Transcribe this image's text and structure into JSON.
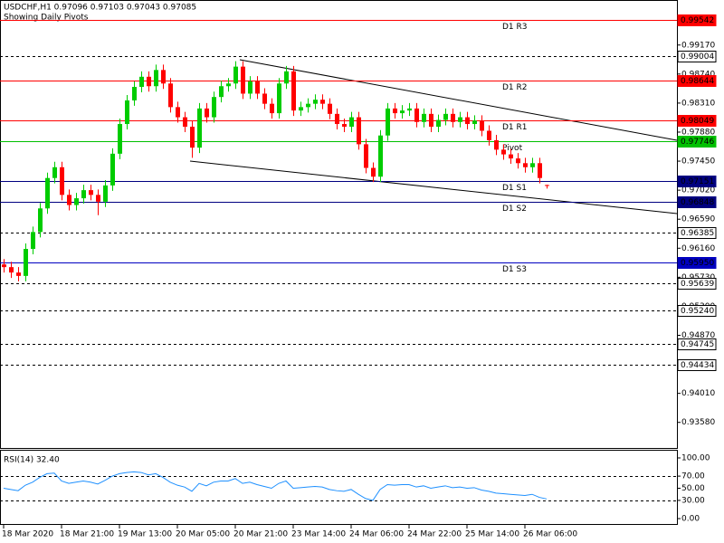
{
  "chart_data": {
    "type": "candlestick",
    "title": "USDCHF,H1  0.97096 0.97103 0.97043 0.97085",
    "subtitle": "Showing Daily Pivots",
    "up_color": "#00cc00",
    "down_color": "#ff0000",
    "categories": [
      "18 Mar 2020",
      null,
      null,
      null,
      null,
      null,
      null,
      null,
      "18 Mar 21:00",
      null,
      null,
      null,
      null,
      null,
      null,
      null,
      "19 Mar 13:00",
      null,
      null,
      null,
      null,
      null,
      null,
      null,
      "20 Mar 05:00",
      null,
      null,
      null,
      null,
      null,
      null,
      null,
      "20 Mar 21:00",
      null,
      null,
      null,
      null,
      null,
      null,
      null,
      "23 Mar 14:00",
      null,
      null,
      null,
      null,
      null,
      null,
      null,
      "24 Mar 06:00",
      null,
      null,
      null,
      null,
      null,
      null,
      null,
      "24 Mar 22:00",
      null,
      null,
      null,
      null,
      null,
      null,
      null,
      "25 Mar 14:00",
      null,
      null,
      null,
      null,
      null,
      null,
      null,
      "26 Mar 06:00",
      null,
      null,
      null
    ],
    "open": [
      0.9592,
      0.9588,
      0.958,
      0.9575,
      0.9615,
      0.964,
      0.9675,
      0.972,
      0.9736,
      0.9695,
      0.968,
      0.969,
      0.9702,
      0.9695,
      0.9685,
      0.9709,
      0.9756,
      0.98,
      0.9835,
      0.9855,
      0.987,
      0.9856,
      0.988,
      0.986,
      0.9825,
      0.981,
      0.9796,
      0.9765,
      0.9823,
      0.981,
      0.984,
      0.9856,
      0.986,
      0.9885,
      0.9845,
      0.9863,
      0.9845,
      0.983,
      0.9816,
      0.986,
      0.9878,
      0.982,
      0.9825,
      0.983,
      0.9836,
      0.983,
      0.9815,
      0.98,
      0.9796,
      0.981,
      0.977,
      0.9735,
      0.9722,
      0.9783,
      0.9823,
      0.9816,
      0.982,
      0.9823,
      0.9803,
      0.9815,
      0.9796,
      0.9806,
      0.9815,
      0.9803,
      0.981,
      0.98,
      0.9805,
      0.979,
      0.9776,
      0.9762,
      0.9755,
      0.9749,
      0.9742,
      0.9736,
      0.9742,
      0.97096
    ],
    "high": [
      0.96,
      0.9596,
      0.9588,
      0.9623,
      0.9648,
      0.9683,
      0.9728,
      0.9744,
      0.9744,
      0.9703,
      0.9698,
      0.971,
      0.971,
      0.9703,
      0.9717,
      0.9764,
      0.9808,
      0.9843,
      0.9863,
      0.9878,
      0.9878,
      0.9888,
      0.9888,
      0.9868,
      0.9833,
      0.9818,
      0.9804,
      0.9831,
      0.9831,
      0.9848,
      0.9864,
      0.9868,
      0.9893,
      0.9893,
      0.9871,
      0.9871,
      0.9853,
      0.9838,
      0.9868,
      0.9886,
      0.9886,
      0.9833,
      0.9838,
      0.9844,
      0.9844,
      0.9838,
      0.9823,
      0.9808,
      0.9818,
      0.9818,
      0.9778,
      0.9743,
      0.9791,
      0.9831,
      0.9831,
      0.9828,
      0.9831,
      0.9831,
      0.9823,
      0.9823,
      0.9814,
      0.9823,
      0.9823,
      0.9818,
      0.9818,
      0.9813,
      0.9813,
      0.9798,
      0.9784,
      0.977,
      0.9763,
      0.9757,
      0.975,
      0.975,
      0.975,
      0.97103
    ],
    "low": [
      0.958,
      0.9572,
      0.9567,
      0.9567,
      0.9607,
      0.9632,
      0.9667,
      0.9712,
      0.9687,
      0.9672,
      0.9672,
      0.9682,
      0.9687,
      0.9665,
      0.9677,
      0.9701,
      0.9748,
      0.9792,
      0.9827,
      0.9847,
      0.9848,
      0.9848,
      0.9852,
      0.9817,
      0.9802,
      0.9788,
      0.975,
      0.9757,
      0.9802,
      0.9802,
      0.9832,
      0.9848,
      0.9852,
      0.9837,
      0.9837,
      0.9837,
      0.9822,
      0.9808,
      0.9808,
      0.9852,
      0.9812,
      0.9812,
      0.9817,
      0.9822,
      0.9822,
      0.9807,
      0.9792,
      0.9788,
      0.9788,
      0.9762,
      0.9727,
      0.9714,
      0.9714,
      0.9775,
      0.9808,
      0.9808,
      0.9812,
      0.9795,
      0.9795,
      0.9788,
      0.9788,
      0.9798,
      0.9795,
      0.9795,
      0.9792,
      0.9792,
      0.9782,
      0.9768,
      0.9754,
      0.9747,
      0.9741,
      0.9734,
      0.9728,
      0.9728,
      0.9712,
      0.97043
    ],
    "close": [
      0.9588,
      0.958,
      0.9575,
      0.9615,
      0.964,
      0.9675,
      0.972,
      0.9736,
      0.9695,
      0.968,
      0.969,
      0.9702,
      0.9695,
      0.9685,
      0.9709,
      0.9756,
      0.98,
      0.9835,
      0.9855,
      0.987,
      0.9856,
      0.988,
      0.986,
      0.9825,
      0.981,
      0.9796,
      0.9765,
      0.9823,
      0.981,
      0.984,
      0.9856,
      0.986,
      0.9885,
      0.9845,
      0.9863,
      0.9845,
      0.983,
      0.9816,
      0.986,
      0.9878,
      0.982,
      0.9825,
      0.983,
      0.9836,
      0.983,
      0.9815,
      0.98,
      0.9796,
      0.981,
      0.977,
      0.9735,
      0.9722,
      0.9783,
      0.9823,
      0.9816,
      0.982,
      0.9823,
      0.9803,
      0.9815,
      0.9796,
      0.9806,
      0.9815,
      0.9803,
      0.981,
      0.98,
      0.9805,
      0.979,
      0.9776,
      0.9762,
      0.9755,
      0.9749,
      0.9742,
      0.9736,
      0.9742,
      0.972,
      0.97085
    ],
    "ylim": [
      0.93201,
      0.99837
    ],
    "yticks": [
      {
        "value": 0.9917,
        "label": "0.99170"
      },
      {
        "value": 0.9874,
        "label": "0.98740"
      },
      {
        "value": 0.9831,
        "label": "0.98310"
      },
      {
        "value": 0.9788,
        "label": "0.97880"
      },
      {
        "value": 0.9745,
        "label": "0.97450"
      },
      {
        "value": 0.9702,
        "label": "0.97020"
      },
      {
        "value": 0.9659,
        "label": "0.96590"
      },
      {
        "value": 0.9616,
        "label": "0.96160"
      },
      {
        "value": 0.9573,
        "label": "0.95730"
      },
      {
        "value": 0.953,
        "label": "0.95300"
      },
      {
        "value": 0.9487,
        "label": "0.94870"
      },
      {
        "value": 0.9401,
        "label": "0.94010"
      },
      {
        "value": 0.9358,
        "label": "0.93580"
      }
    ],
    "levels": [
      {
        "value": 0.99542,
        "label": "0.99542",
        "name": "D1 R3",
        "color": "#ff0000",
        "style": "solid"
      },
      {
        "value": 0.99004,
        "label": "0.99004",
        "color": "#000000",
        "style": "dashed"
      },
      {
        "value": 0.98644,
        "label": "0.98644",
        "name": "D1 R2",
        "color": "#ff0000",
        "style": "solid"
      },
      {
        "value": 0.98049,
        "label": "0.98049",
        "name": "D1 R1",
        "color": "#ff0000",
        "style": "solid"
      },
      {
        "value": 0.97746,
        "label": "0.97746",
        "name": "Pivot",
        "color": "#00c000",
        "style": "solid"
      },
      {
        "value": 0.97151,
        "label": "0.97151",
        "name": "D1 S1",
        "color": "#000080",
        "style": "solid"
      },
      {
        "value": 0.96848,
        "label": "0.96848",
        "name": "D1 S2",
        "color": "#000080",
        "style": "solid"
      },
      {
        "value": 0.96385,
        "label": "0.96385",
        "color": "#000000",
        "style": "dashed"
      },
      {
        "value": 0.9595,
        "label": "0.95950",
        "name": "D1 S3",
        "color": "#0000c0",
        "style": "solid"
      },
      {
        "value": 0.95639,
        "label": "0.95639",
        "color": "#000000",
        "style": "dashed"
      },
      {
        "value": 0.9524,
        "label": "0.95240",
        "color": "#000000",
        "style": "dashed"
      },
      {
        "value": 0.94745,
        "label": "0.94745",
        "color": "#000000",
        "style": "dashed"
      },
      {
        "value": 0.94434,
        "label": "0.94434",
        "color": "#000000",
        "style": "dashed"
      }
    ],
    "rsi": {
      "title": "RSI(14) 32.40",
      "color": "#1e90ff",
      "ylim": [
        -10.4,
        113.4
      ],
      "yticks": [
        {
          "value": 100,
          "label": "100.00"
        },
        {
          "value": 70,
          "label": "70.00"
        },
        {
          "value": 50,
          "label": "50.00"
        },
        {
          "value": 30,
          "label": "30.00"
        },
        {
          "value": 0,
          "label": "0.00"
        }
      ],
      "levels": [
        70,
        30
      ],
      "values": [
        50,
        48,
        46,
        55,
        60,
        68,
        74,
        75,
        62,
        58,
        60,
        62,
        60,
        57,
        63,
        70,
        74,
        76,
        77,
        76,
        72,
        74,
        68,
        60,
        55,
        52,
        45,
        58,
        54,
        60,
        62,
        62,
        66,
        58,
        60,
        56,
        53,
        50,
        58,
        62,
        50,
        51,
        52,
        53,
        52,
        48,
        46,
        45,
        48,
        40,
        33,
        30,
        48,
        56,
        55,
        56,
        56,
        52,
        54,
        50,
        52,
        54,
        51,
        52,
        50,
        51,
        47,
        45,
        42,
        41,
        40,
        39,
        38,
        40,
        35,
        32.4
      ]
    }
  }
}
